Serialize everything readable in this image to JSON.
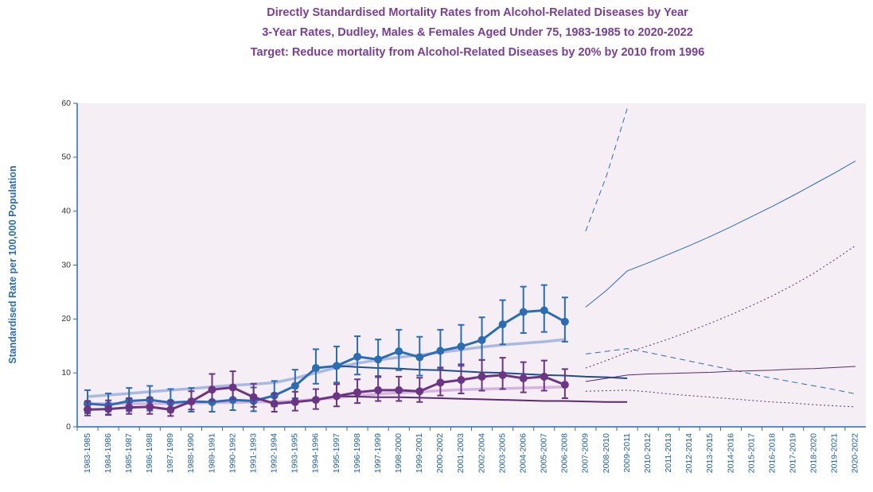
{
  "chart_data": {
    "type": "line",
    "title": "Directly Standardised Mortality Rates from Alcohol-Related Diseases by Year",
    "subtitle": "3-Year Rates, Dudley, Males & Females Aged Under 75, 1983-1985 to 2020-2022",
    "subtitle2": "Target: Reduce mortality from Alcohol-Related Diseases by 20% by 2010 from 1996",
    "y_label": "Standardised Rate per 100,000 Population",
    "categories": [
      "1983-1985",
      "1984-1986",
      "1985-1987",
      "1986-1988",
      "1987-1989",
      "1988-1990",
      "1989-1991",
      "1990-1992",
      "1991-1993",
      "1992-1994",
      "1993-1995",
      "1994-1996",
      "1995-1997",
      "1996-1998",
      "1997-1999",
      "1998-2000",
      "1999-2001",
      "2000-2002",
      "2001-2003",
      "2002-2004",
      "2003-2005",
      "2004-2006",
      "2005-2007",
      "2006-2008",
      "2007-2009",
      "2008-2010",
      "2009-2011",
      "2010-2012",
      "2011-2013",
      "2012-2014",
      "2013-2015",
      "2014-2016",
      "2015-2017",
      "2016-2018",
      "2017-2019",
      "2018-2020",
      "2019-2021",
      "2020-2022"
    ],
    "ylim": [
      0,
      60
    ],
    "yticks": [
      0,
      10,
      20,
      30,
      40,
      50,
      60
    ],
    "series": [
      {
        "color": "#a9b9e0",
        "width": 3.5,
        "dash": "solid",
        "markers": false,
        "values": [
          5.6,
          5.9,
          6.2,
          6.5,
          6.8,
          7.1,
          7.4,
          7.7,
          7.9,
          8.2,
          9.0,
          10.0,
          11.0,
          11.8,
          12.4,
          12.9,
          13.3,
          13.8,
          14.3,
          14.8,
          15.2,
          15.5,
          15.8,
          16.2,
          null,
          null,
          null,
          null,
          null,
          null,
          null,
          null,
          null,
          null,
          null,
          null,
          null,
          null
        ]
      },
      {
        "color": "#d6b4e0",
        "width": 3.5,
        "dash": "solid",
        "markers": false,
        "values": [
          4.3,
          4.3,
          4.3,
          4.3,
          4.3,
          4.4,
          4.5,
          4.5,
          4.6,
          4.6,
          4.8,
          5.1,
          5.4,
          5.8,
          6.1,
          6.3,
          6.5,
          6.7,
          6.9,
          7.0,
          7.1,
          7.2,
          7.3,
          7.4,
          null,
          null,
          null,
          null,
          null,
          null,
          null,
          null,
          null,
          null,
          null,
          null,
          null,
          null
        ]
      },
      {
        "color": "#1f4e8c",
        "width": 2,
        "dash": "solid",
        "markers": false,
        "values": [
          null,
          null,
          null,
          null,
          null,
          null,
          null,
          null,
          null,
          null,
          null,
          null,
          11.3,
          11.1,
          10.9,
          10.8,
          10.6,
          10.5,
          10.3,
          10.1,
          10.0,
          9.8,
          9.6,
          9.5,
          9.3,
          9.2,
          9.0,
          null,
          null,
          null,
          null,
          null,
          null,
          null,
          null,
          null,
          null,
          null
        ]
      },
      {
        "color": "#5b2a6e",
        "width": 2,
        "dash": "solid",
        "markers": false,
        "values": [
          null,
          null,
          null,
          null,
          null,
          null,
          null,
          null,
          null,
          null,
          null,
          null,
          5.7,
          5.6,
          5.5,
          5.5,
          5.4,
          5.3,
          5.2,
          5.1,
          5.0,
          4.9,
          4.8,
          4.8,
          4.7,
          4.6,
          4.6,
          null,
          null,
          null,
          null,
          null,
          null,
          null,
          null,
          null,
          null,
          null
        ]
      },
      {
        "color": "#2a6db5",
        "width": 3,
        "dash": "solid",
        "markers": true,
        "values": [
          4.3,
          4.0,
          4.8,
          5.0,
          4.5,
          4.7,
          4.6,
          5.0,
          4.8,
          5.8,
          7.6,
          10.9,
          11.3,
          13.0,
          12.5,
          14.0,
          12.9,
          14.1,
          14.9,
          16.1,
          19.0,
          21.3,
          21.6,
          19.5,
          null,
          null,
          null,
          null,
          null,
          null,
          null,
          null,
          null,
          null,
          null,
          null,
          null,
          null
        ],
        "low": [
          2.5,
          2.3,
          2.9,
          3.0,
          2.7,
          2.8,
          2.8,
          3.1,
          2.9,
          3.8,
          5.3,
          8.0,
          8.2,
          9.7,
          9.2,
          10.5,
          9.5,
          10.7,
          11.3,
          12.4,
          15.3,
          17.4,
          17.6,
          15.8,
          null,
          null,
          null,
          null,
          null,
          null,
          null,
          null,
          null,
          null,
          null,
          null,
          null,
          null
        ],
        "high": [
          6.8,
          6.2,
          7.2,
          7.6,
          7.0,
          7.2,
          7.1,
          7.6,
          7.3,
          8.5,
          10.6,
          14.4,
          14.9,
          16.8,
          16.2,
          18.0,
          16.7,
          18.0,
          18.9,
          20.3,
          23.5,
          26.0,
          26.3,
          24.0,
          null,
          null,
          null,
          null,
          null,
          null,
          null,
          null,
          null,
          null,
          null,
          null,
          null,
          null
        ]
      },
      {
        "color": "#6b3585",
        "width": 3,
        "dash": "solid",
        "markers": true,
        "values": [
          3.2,
          3.3,
          3.6,
          3.7,
          3.2,
          4.7,
          6.9,
          7.3,
          5.5,
          4.3,
          4.6,
          5.0,
          5.7,
          6.4,
          6.8,
          6.8,
          6.6,
          8.2,
          8.7,
          9.3,
          9.6,
          9.0,
          9.3,
          7.8,
          null,
          null,
          null,
          null,
          null,
          null,
          null,
          null,
          null,
          null,
          null,
          null,
          null,
          null
        ],
        "low": [
          2.1,
          2.2,
          2.4,
          2.4,
          2.0,
          3.2,
          4.8,
          5.1,
          3.7,
          2.8,
          3.0,
          3.3,
          3.8,
          4.4,
          4.8,
          4.8,
          4.6,
          5.8,
          6.2,
          6.7,
          7.0,
          6.4,
          6.7,
          5.3,
          null,
          null,
          null,
          null,
          null,
          null,
          null,
          null,
          null,
          null,
          null,
          null,
          null,
          null
        ],
        "high": [
          4.8,
          4.9,
          5.3,
          5.4,
          4.8,
          6.6,
          9.8,
          10.3,
          8.0,
          6.2,
          6.5,
          7.0,
          7.9,
          8.8,
          9.4,
          9.3,
          9.1,
          11.0,
          11.6,
          12.4,
          12.8,
          12.0,
          12.3,
          10.7,
          null,
          null,
          null,
          null,
          null,
          null,
          null,
          null,
          null,
          null,
          null,
          null,
          null,
          null
        ]
      },
      {
        "color": "#2a6db5",
        "width": 1,
        "dash": "solid",
        "markers": false,
        "values": [
          null,
          null,
          null,
          null,
          null,
          null,
          null,
          null,
          null,
          null,
          null,
          null,
          null,
          null,
          null,
          null,
          null,
          null,
          null,
          null,
          null,
          null,
          null,
          null,
          22.2,
          25.3,
          28.9,
          30.4,
          32.0,
          33.6,
          35.3,
          37.1,
          39.0,
          40.9,
          42.9,
          45.0,
          47.1,
          49.3
        ]
      },
      {
        "color": "#2a6db5",
        "width": 1,
        "dash": "dashed",
        "markers": false,
        "values": [
          null,
          null,
          null,
          null,
          null,
          null,
          null,
          null,
          null,
          null,
          null,
          null,
          null,
          null,
          null,
          null,
          null,
          null,
          null,
          null,
          null,
          null,
          null,
          null,
          36.3,
          46.5,
          59.0,
          null,
          null,
          null,
          null,
          null,
          null,
          null,
          null,
          null,
          null,
          null
        ]
      },
      {
        "color": "#2a6db5",
        "width": 1,
        "dash": "dashed",
        "markers": false,
        "values": [
          null,
          null,
          null,
          null,
          null,
          null,
          null,
          null,
          null,
          null,
          null,
          null,
          null,
          null,
          null,
          null,
          null,
          null,
          null,
          null,
          null,
          null,
          null,
          null,
          13.5,
          14.0,
          14.5,
          13.8,
          13.0,
          12.2,
          11.4,
          10.6,
          9.8,
          9.0,
          8.3,
          7.6,
          6.9,
          6.1
        ]
      },
      {
        "color": "#5b2a6e",
        "width": 1,
        "dash": "solid",
        "markers": false,
        "values": [
          null,
          null,
          null,
          null,
          null,
          null,
          null,
          null,
          null,
          null,
          null,
          null,
          null,
          null,
          null,
          null,
          null,
          null,
          null,
          null,
          null,
          null,
          null,
          null,
          8.4,
          9.0,
          9.6,
          9.8,
          9.9,
          10.0,
          10.1,
          10.3,
          10.4,
          10.5,
          10.7,
          10.8,
          11.0,
          11.2
        ]
      },
      {
        "color": "#5b2a6e",
        "width": 1,
        "dash": "dotted",
        "markers": false,
        "values": [
          null,
          null,
          null,
          null,
          null,
          null,
          null,
          null,
          null,
          null,
          null,
          null,
          null,
          null,
          null,
          null,
          null,
          null,
          null,
          null,
          null,
          null,
          null,
          null,
          10.9,
          12.3,
          13.8,
          15.0,
          16.3,
          17.7,
          19.2,
          20.8,
          22.5,
          24.3,
          26.3,
          28.5,
          31.0,
          33.6
        ]
      },
      {
        "color": "#5b2a6e",
        "width": 1,
        "dash": "dotted",
        "markers": false,
        "values": [
          null,
          null,
          null,
          null,
          null,
          null,
          null,
          null,
          null,
          null,
          null,
          null,
          null,
          null,
          null,
          null,
          null,
          null,
          null,
          null,
          null,
          null,
          null,
          null,
          6.6,
          6.7,
          6.8,
          6.5,
          6.1,
          5.8,
          5.5,
          5.2,
          4.9,
          4.6,
          4.4,
          4.1,
          3.9,
          3.7
        ]
      }
    ]
  }
}
